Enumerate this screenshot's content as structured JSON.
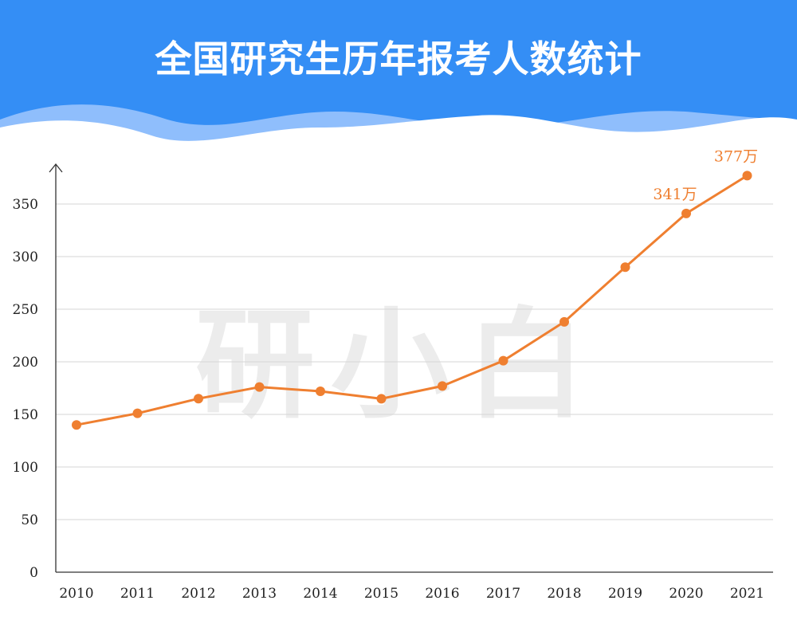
{
  "title": "全国研究生历年报考人数统计",
  "watermark": "研小白",
  "colors": {
    "banner": "#348ef5",
    "wave_light": "#8fbefc",
    "line": "#ef7f30",
    "grid": "#d6d6d6",
    "axis": "#333333"
  },
  "chart_data": {
    "type": "line",
    "title": "全国研究生历年报考人数统计",
    "xlabel": "",
    "ylabel": "",
    "x": [
      "2010",
      "2011",
      "2012",
      "2013",
      "2014",
      "2015",
      "2016",
      "2017",
      "2018",
      "2019",
      "2020",
      "2021"
    ],
    "series": [
      {
        "values": [
          140,
          151,
          165,
          176,
          172,
          164.9,
          177,
          201,
          238,
          290,
          341,
          377
        ],
        "labels": [
          null,
          null,
          null,
          null,
          null,
          null,
          null,
          null,
          null,
          null,
          "341万",
          "377万"
        ]
      }
    ],
    "yticks": [
      0,
      50,
      100,
      150,
      200,
      250,
      300,
      350
    ],
    "ylim": [
      0,
      385
    ],
    "grid": true,
    "legend": "none"
  }
}
